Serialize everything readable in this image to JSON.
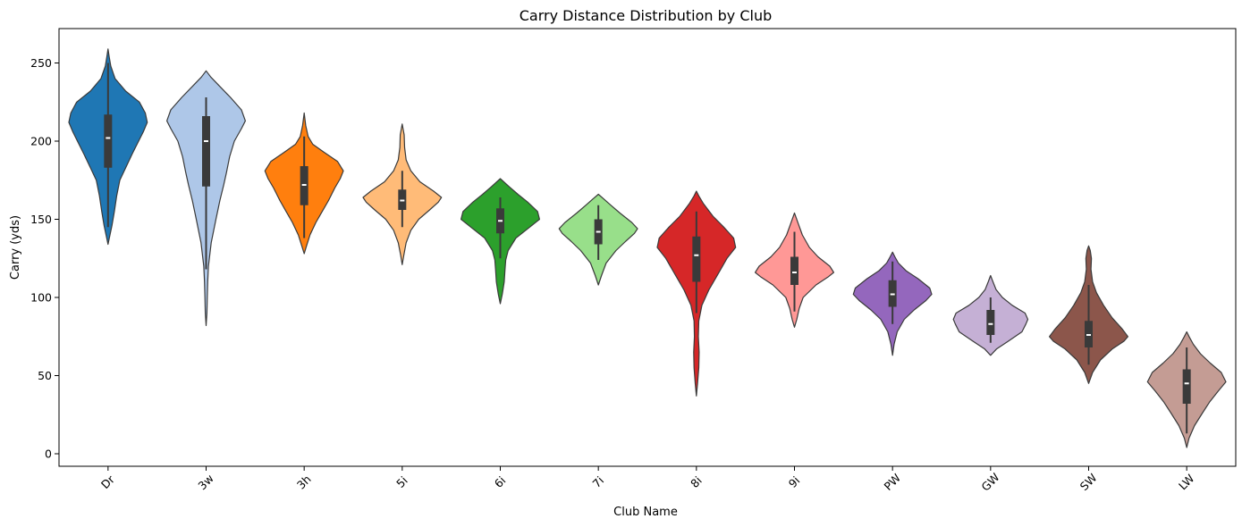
{
  "chart_data": {
    "type": "violin",
    "title": "Carry Distance Distribution by Club",
    "xlabel": "Club Name",
    "ylabel": "Carry (yds)",
    "ylim": [
      -8,
      272
    ],
    "yticks": [
      0,
      50,
      100,
      150,
      200,
      250
    ],
    "grid": false,
    "legend": "none",
    "categories": [
      "Dr",
      "3w",
      "3h",
      "5i",
      "6i",
      "7i",
      "8i",
      "9i",
      "PW",
      "GW",
      "SW",
      "LW"
    ],
    "colors": [
      "#1f77b4",
      "#aec7e8",
      "#ff7f0e",
      "#ffbb78",
      "#2ca02c",
      "#98df8a",
      "#d62728",
      "#ff9896",
      "#9467bd",
      "#c5b0d5",
      "#8c564b",
      "#c49c94"
    ],
    "stats": [
      {
        "club": "Dr",
        "min": 145,
        "q1": 183,
        "median": 202,
        "q3": 217,
        "max": 250,
        "kde_min": 134,
        "kde_max": 259
      },
      {
        "club": "3w",
        "min": 118,
        "q1": 171,
        "median": 200,
        "q3": 216,
        "max": 228,
        "kde_min": 82,
        "kde_max": 245
      },
      {
        "club": "3h",
        "min": 138,
        "q1": 159,
        "median": 172,
        "q3": 184,
        "max": 203,
        "kde_min": 128,
        "kde_max": 218
      },
      {
        "club": "5i",
        "min": 145,
        "q1": 156,
        "median": 162,
        "q3": 169,
        "max": 181,
        "kde_min": 121,
        "kde_max": 211
      },
      {
        "club": "6i",
        "min": 125,
        "q1": 141,
        "median": 149,
        "q3": 157,
        "max": 164,
        "kde_min": 96,
        "kde_max": 176
      },
      {
        "club": "7i",
        "min": 124,
        "q1": 134,
        "median": 142,
        "q3": 150,
        "max": 159,
        "kde_min": 108,
        "kde_max": 166
      },
      {
        "club": "8i",
        "min": 90,
        "q1": 110,
        "median": 127,
        "q3": 139,
        "max": 155,
        "kde_min": 37,
        "kde_max": 168
      },
      {
        "club": "9i",
        "min": 91,
        "q1": 108,
        "median": 116,
        "q3": 126,
        "max": 142,
        "kde_min": 81,
        "kde_max": 154
      },
      {
        "club": "PW",
        "min": 83,
        "q1": 94,
        "median": 102,
        "q3": 111,
        "max": 123,
        "kde_min": 63,
        "kde_max": 129
      },
      {
        "club": "GW",
        "min": 71,
        "q1": 76,
        "median": 83,
        "q3": 92,
        "max": 100,
        "kde_min": 63,
        "kde_max": 114
      },
      {
        "club": "SW",
        "min": 57,
        "q1": 68,
        "median": 76,
        "q3": 85,
        "max": 108,
        "kde_min": 45,
        "kde_max": 133
      },
      {
        "club": "LW",
        "min": 13,
        "q1": 32,
        "median": 45,
        "q3": 54,
        "max": 68,
        "kde_min": 4,
        "kde_max": 78
      }
    ]
  }
}
